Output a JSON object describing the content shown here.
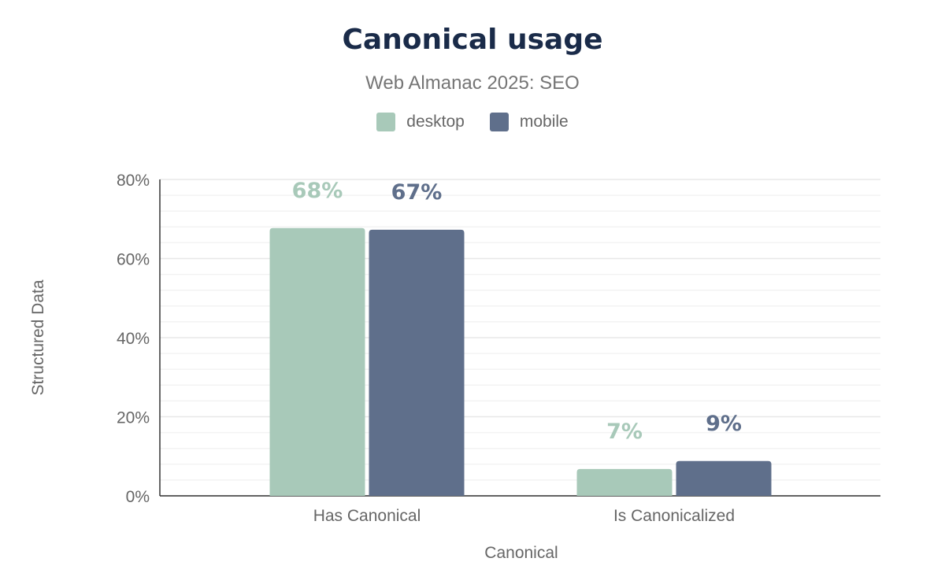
{
  "chart_data": {
    "type": "bar",
    "title": "Canonical usage",
    "subtitle": "Web Almanac 2025: SEO",
    "xlabel": "Canonical",
    "ylabel": "Structured Data",
    "categories": [
      "Has Canonical",
      "Is Canonicalized"
    ],
    "series": [
      {
        "name": "desktop",
        "color": "#a8c9b9",
        "values": [
          67.7,
          6.8
        ],
        "labels": [
          "68%",
          "7%"
        ]
      },
      {
        "name": "mobile",
        "color": "#5f6f8b",
        "values": [
          67.3,
          8.8
        ],
        "labels": [
          "67%",
          "9%"
        ]
      }
    ],
    "ylim": [
      0,
      80
    ],
    "yticks": [
      0,
      20,
      40,
      60,
      80
    ],
    "ytick_labels": [
      "0%",
      "20%",
      "40%",
      "60%",
      "80%"
    ],
    "grid": true,
    "legend": "top"
  }
}
